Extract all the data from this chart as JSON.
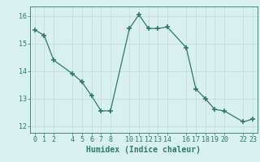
{
  "x": [
    0,
    1,
    2,
    4,
    5,
    6,
    7,
    8,
    10,
    11,
    12,
    13,
    14,
    16,
    17,
    18,
    19,
    20,
    22,
    23
  ],
  "y": [
    15.5,
    15.3,
    14.4,
    13.9,
    13.6,
    13.1,
    12.55,
    12.55,
    15.55,
    16.05,
    15.55,
    15.55,
    15.6,
    14.85,
    13.35,
    13.0,
    12.6,
    12.55,
    12.15,
    12.25
  ],
  "line_color": "#2d7a6e",
  "marker_color": "#2d7a6e",
  "bg_color": "#d8f0ee",
  "grid_color": "#c4e0dc",
  "xlabel": "Humidex (Indice chaleur)",
  "xlim": [
    -0.5,
    23.5
  ],
  "ylim": [
    11.75,
    16.35
  ],
  "yticks": [
    12,
    13,
    14,
    15,
    16
  ],
  "xticks": [
    0,
    1,
    2,
    4,
    5,
    6,
    7,
    8,
    10,
    11,
    12,
    13,
    14,
    16,
    17,
    18,
    19,
    20,
    22,
    23
  ],
  "xtick_labels": [
    "0",
    "1",
    "2",
    "4",
    "5",
    "6",
    "7",
    "8",
    "10",
    "11",
    "12",
    "13",
    "14",
    "16",
    "17",
    "18",
    "19",
    "20",
    "22",
    "23"
  ],
  "tick_color": "#2d7a6e",
  "label_fontsize": 7,
  "tick_fontsize": 6
}
